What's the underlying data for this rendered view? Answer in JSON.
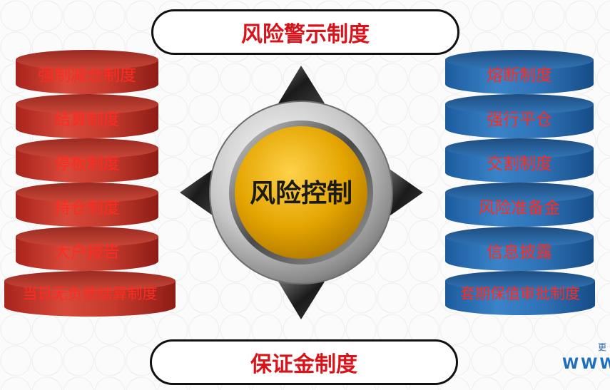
{
  "top_banner": "风险警示制度",
  "bottom_banner": "保证金制度",
  "center_label": "风险控制",
  "left_stack": [
    "强制减仓制度",
    "结算制度",
    "停板制度",
    "持仓制度",
    "大户报告",
    "当日无负债结算制度"
  ],
  "right_stack": [
    "熔断制度",
    "强行平仓",
    "交割制度",
    "风险准备金",
    "信息披露",
    "套期保值审批制度"
  ],
  "watermark": {
    "line1": "更",
    "line2": "WWW"
  },
  "colors": {
    "label_red": "#d8141a",
    "left_disks": "#c43a2c",
    "right_disks": "#2e72b6",
    "core_gold": "#e3a400"
  }
}
